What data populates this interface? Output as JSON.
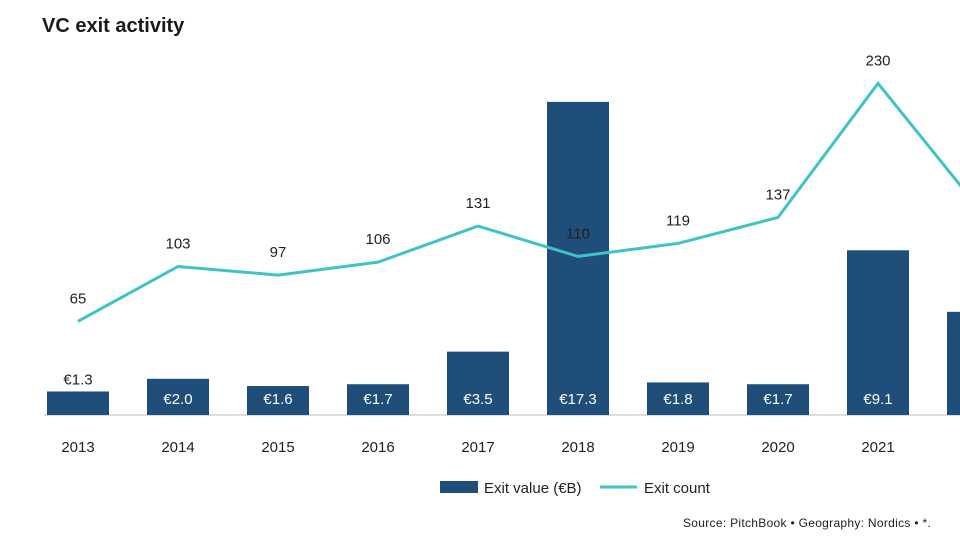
{
  "title": "VC exit activity",
  "source": "Source: PitchBook  •  Geography: Nordics  •  *.",
  "colors": {
    "bar": "#1f4e7a",
    "line": "#3fc3c6"
  },
  "chart_data": {
    "type": "bar+line",
    "title": "VC exit activity",
    "categories": [
      "2013",
      "2014",
      "2015",
      "2016",
      "2017",
      "2018",
      "2019",
      "2020",
      "2021",
      ""
    ],
    "series": [
      {
        "name": "Exit value (€B)",
        "type": "bar",
        "values": [
          1.3,
          2.0,
          1.6,
          1.7,
          3.5,
          17.3,
          1.8,
          1.7,
          9.1,
          5.7
        ],
        "labels": [
          "€1.3",
          "€2.0",
          "€1.6",
          "€1.7",
          "€3.5",
          "€17.3",
          "€1.8",
          "€1.7",
          "€9.1",
          ""
        ]
      },
      {
        "name": "Exit count",
        "type": "line",
        "values": [
          65,
          103,
          97,
          106,
          131,
          110,
          119,
          137,
          230,
          144
        ],
        "labels": [
          "65",
          "103",
          "97",
          "106",
          "131",
          "110",
          "119",
          "137",
          "230",
          ""
        ]
      }
    ],
    "legend": "bottom-center",
    "grid": false
  }
}
